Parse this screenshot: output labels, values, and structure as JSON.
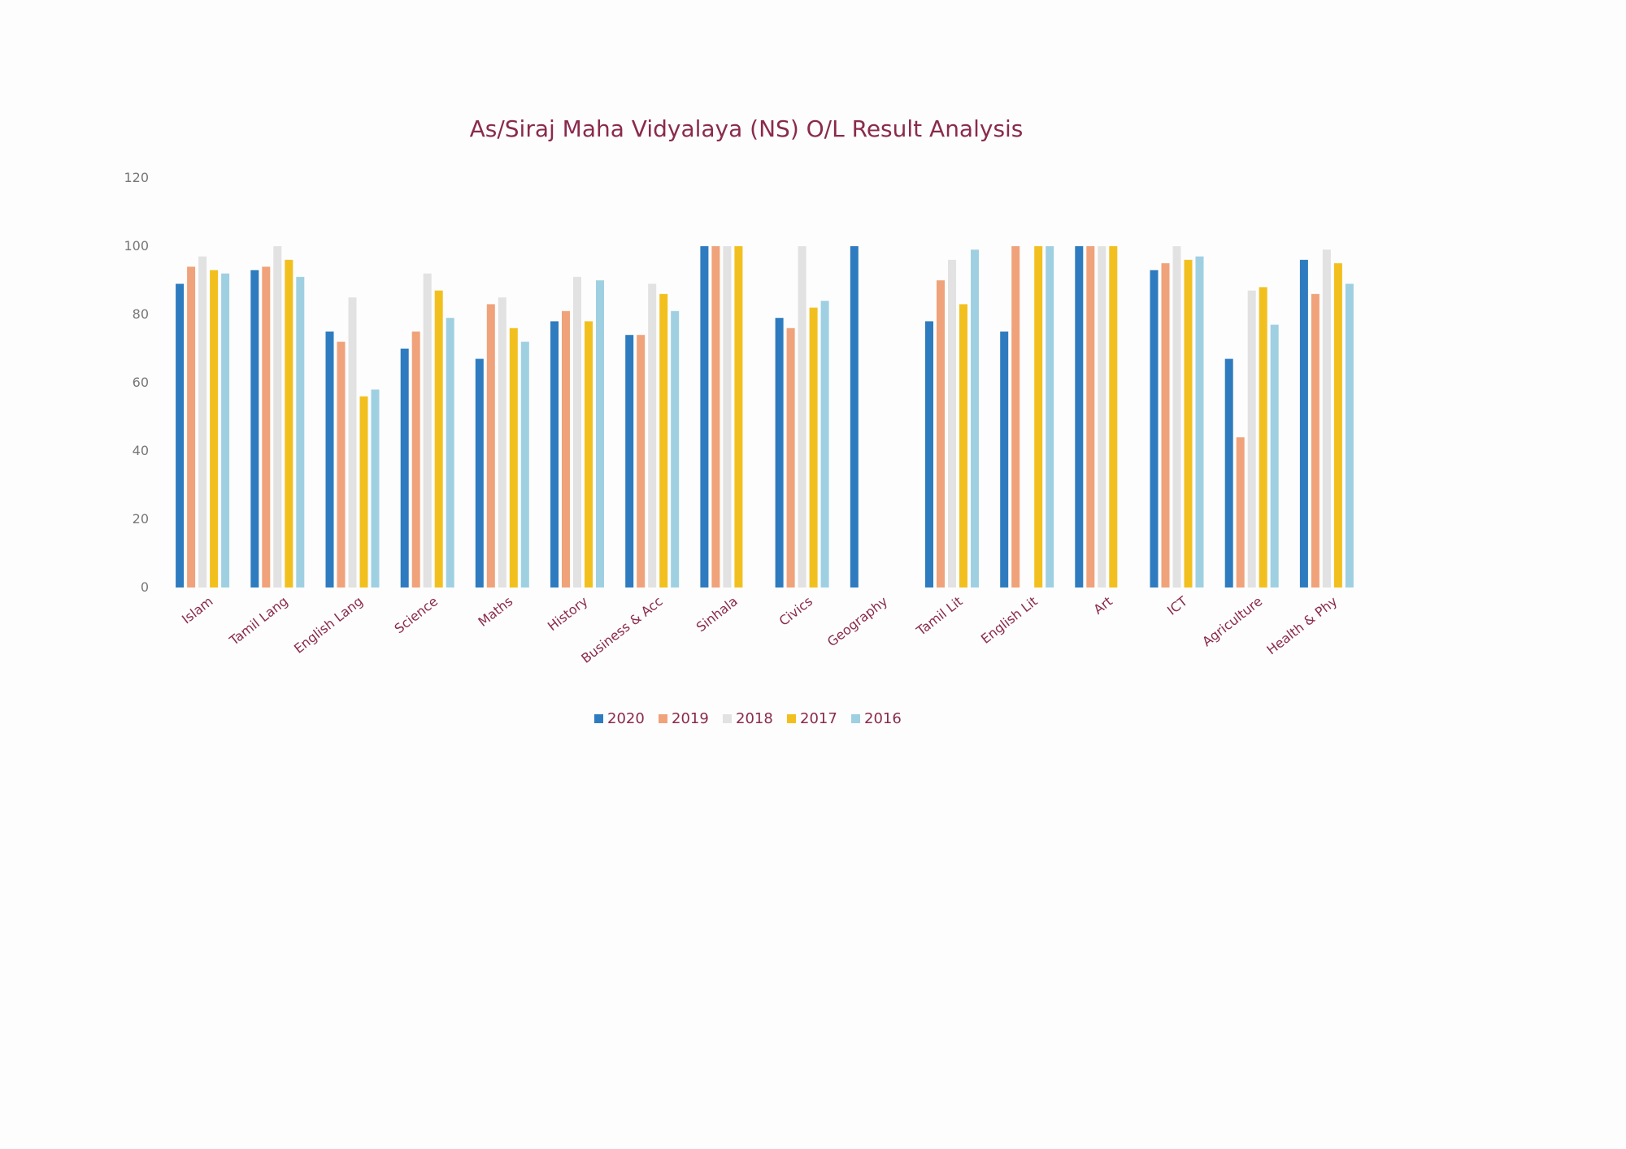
{
  "chart_data": {
    "type": "bar",
    "title": "As/Siraj Maha Vidyalaya (NS) O/L Result Analysis",
    "xlabel": "",
    "ylabel": "",
    "ylim": [
      0,
      120
    ],
    "yticks": [
      "0",
      "20",
      "40",
      "60",
      "80",
      "100",
      "120"
    ],
    "grid": false,
    "legend_position": "bottom",
    "categories": [
      "Islam",
      "Tamil Lang",
      "English Lang",
      "Science",
      "Maths",
      "History",
      "Business & Acc",
      "Sinhala",
      "Civics",
      "Geography",
      "Tamil Lit",
      "English Lit",
      "Art",
      "ICT",
      "Agriculture",
      "Health & Phy"
    ],
    "series": [
      {
        "name": "2020",
        "color": "#2e7cbf",
        "values": [
          89,
          93,
          75,
          70,
          67,
          78,
          74,
          100,
          79,
          100,
          78,
          75,
          100,
          93,
          67,
          96
        ]
      },
      {
        "name": "2019",
        "color": "#f0a27a",
        "values": [
          94,
          94,
          72,
          75,
          83,
          81,
          74,
          100,
          76,
          null,
          90,
          100,
          100,
          95,
          44,
          86
        ]
      },
      {
        "name": "2018",
        "color": "#e2e2e2",
        "values": [
          97,
          100,
          85,
          92,
          85,
          91,
          89,
          100,
          100,
          null,
          96,
          null,
          100,
          100,
          87,
          99
        ]
      },
      {
        "name": "2017",
        "color": "#f2c01e",
        "values": [
          93,
          96,
          56,
          87,
          76,
          78,
          86,
          100,
          82,
          null,
          83,
          100,
          100,
          96,
          88,
          95
        ]
      },
      {
        "name": "2016",
        "color": "#9fd0e2",
        "values": [
          92,
          91,
          58,
          79,
          72,
          90,
          81,
          null,
          84,
          null,
          99,
          100,
          null,
          97,
          77,
          89
        ]
      }
    ]
  }
}
